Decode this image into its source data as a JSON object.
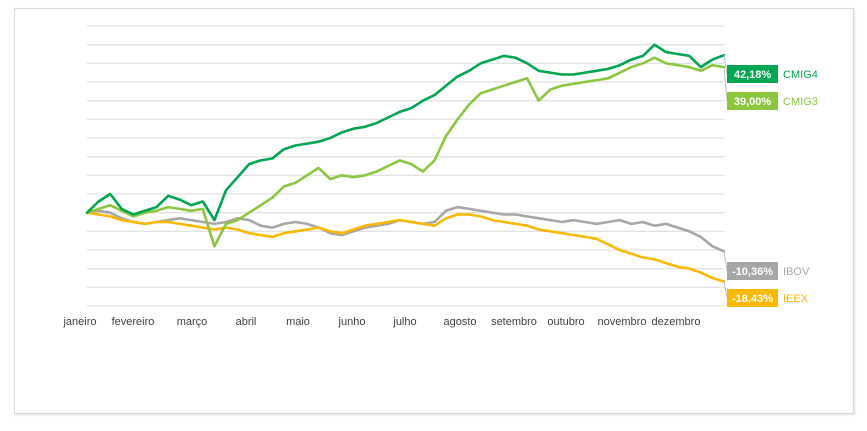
{
  "chart_data": {
    "type": "line",
    "title": "",
    "xlabel": "",
    "ylabel": "",
    "x_ticks": [
      "janeiro",
      "fevereiro",
      "março",
      "abril",
      "maio",
      "junho",
      "julho",
      "agosto",
      "setembro",
      "outubro",
      "novembro",
      "dezembro"
    ],
    "ylim": [
      -25,
      50
    ],
    "grid": true,
    "legend": "end-of-line labels (right)",
    "series": [
      {
        "name": "CMIG4",
        "color": "#00a651",
        "end_label": "42,18%",
        "values": [
          0.0,
          3.0,
          5.0,
          1.0,
          -0.5,
          0.5,
          1.5,
          4.5,
          3.5,
          2.0,
          3.0,
          -2.0,
          6.0,
          9.5,
          13.0,
          14.0,
          14.5,
          17.0,
          18.0,
          18.5,
          19.0,
          20.0,
          21.5,
          22.5,
          23.0,
          24.0,
          25.5,
          27.0,
          28.0,
          30.0,
          31.5,
          34.0,
          36.5,
          38.0,
          40.0,
          41.0,
          42.0,
          41.5,
          40.0,
          38.0,
          37.5,
          37.0,
          37.0,
          37.5,
          38.0,
          38.5,
          39.5,
          41.0,
          42.0,
          45.0,
          43.0,
          42.5,
          42.0,
          39.0,
          41.0,
          42.18
        ]
      },
      {
        "name": "CMIG3",
        "color": "#8cc63f",
        "end_label": "39,00%",
        "values": [
          0.0,
          1.0,
          2.0,
          0.5,
          -1.0,
          0.0,
          0.5,
          1.5,
          1.0,
          0.5,
          1.0,
          -9.0,
          -3.0,
          -2.0,
          0.0,
          2.0,
          4.0,
          7.0,
          8.0,
          10.0,
          12.0,
          9.0,
          10.0,
          9.5,
          10.0,
          11.0,
          12.5,
          14.0,
          13.0,
          11.0,
          14.0,
          20.5,
          25.0,
          29.0,
          32.0,
          33.0,
          34.0,
          35.0,
          36.0,
          30.0,
          33.0,
          34.0,
          34.5,
          35.0,
          35.5,
          36.0,
          37.5,
          39.0,
          40.0,
          41.5,
          40.0,
          39.5,
          39.0,
          38.0,
          39.5,
          39.0
        ]
      },
      {
        "name": "IBOV",
        "color": "#a6a6a6",
        "end_label": "-10,36%",
        "values": [
          0.0,
          0.5,
          0.0,
          -1.5,
          -2.5,
          -3.0,
          -2.5,
          -2.0,
          -1.5,
          -2.0,
          -2.5,
          -3.0,
          -2.5,
          -1.5,
          -2.0,
          -3.5,
          -4.0,
          -3.0,
          -2.5,
          -3.0,
          -4.0,
          -5.5,
          -6.0,
          -5.0,
          -4.0,
          -3.5,
          -3.0,
          -2.0,
          -2.5,
          -3.0,
          -2.5,
          0.5,
          1.5,
          1.0,
          0.5,
          0.0,
          -0.5,
          -0.5,
          -1.0,
          -1.5,
          -2.0,
          -2.5,
          -2.0,
          -2.5,
          -3.0,
          -2.5,
          -2.0,
          -3.0,
          -2.5,
          -3.5,
          -3.0,
          -4.0,
          -5.0,
          -6.5,
          -9.0,
          -10.36
        ]
      },
      {
        "name": "IEEX",
        "color": "#fbb800",
        "end_label": "-18,43%",
        "values": [
          0.0,
          -0.5,
          -1.0,
          -2.0,
          -2.5,
          -3.0,
          -2.5,
          -2.5,
          -3.0,
          -3.5,
          -4.0,
          -4.5,
          -4.0,
          -4.5,
          -5.5,
          -6.0,
          -6.5,
          -5.5,
          -5.0,
          -4.5,
          -4.0,
          -5.0,
          -5.5,
          -4.5,
          -3.5,
          -3.0,
          -2.5,
          -2.0,
          -2.5,
          -3.0,
          -3.5,
          -1.5,
          -0.5,
          -0.5,
          -1.0,
          -2.0,
          -2.5,
          -3.0,
          -3.5,
          -4.5,
          -5.0,
          -5.5,
          -6.0,
          -6.5,
          -7.0,
          -8.5,
          -10.0,
          -11.0,
          -12.0,
          -12.5,
          -13.5,
          -14.5,
          -15.0,
          -16.0,
          -17.5,
          -18.43
        ]
      }
    ]
  }
}
